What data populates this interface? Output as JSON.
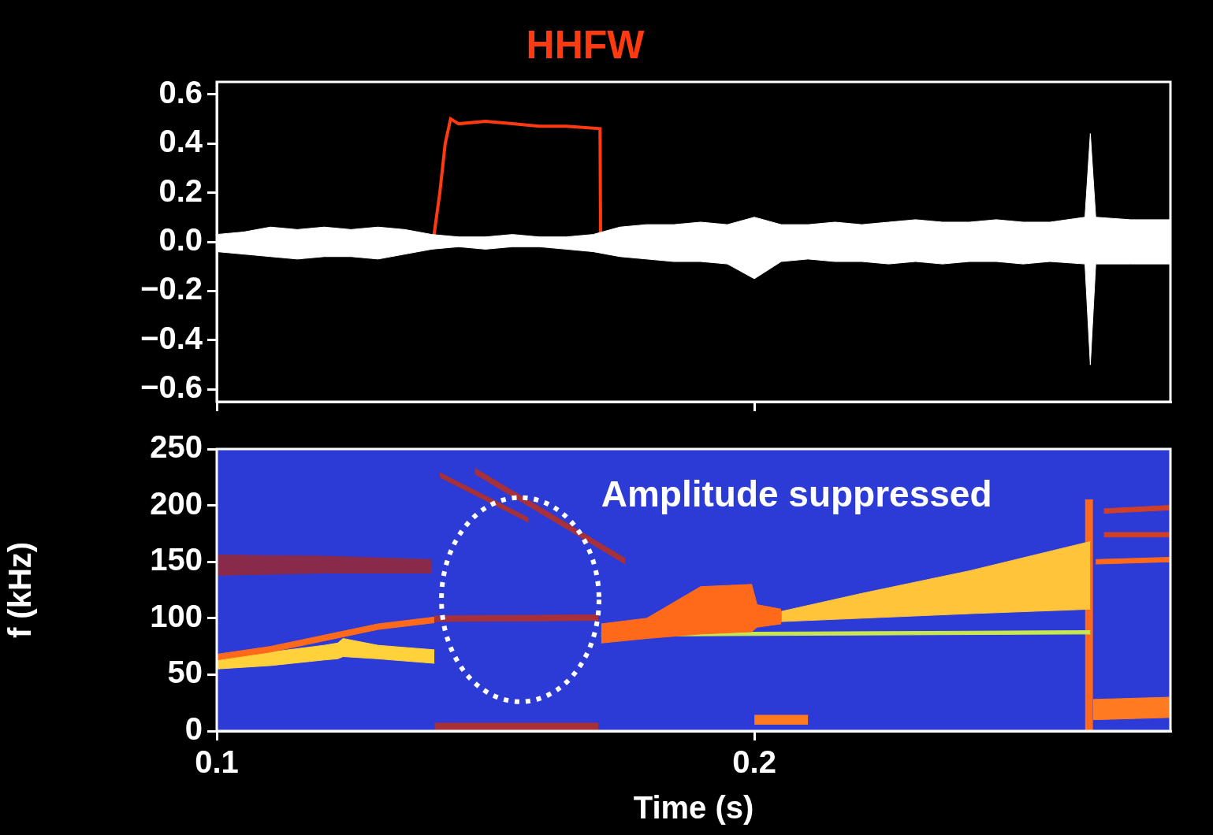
{
  "chart_data": [
    {
      "type": "line",
      "title": "HHFW",
      "xlim": [
        0.1,
        0.2774
      ],
      "xticks": [
        0.1,
        0.2
      ],
      "ylim": [
        -0.65,
        0.65
      ],
      "yticks": [
        {
          "value": 0.6,
          "label": "0.6"
        },
        {
          "value": 0.4,
          "label": "0.4"
        },
        {
          "value": 0.2,
          "label": "0.2"
        },
        {
          "value": 0,
          "label": "0.0"
        },
        {
          "value": -0.2,
          "label": "−0.2"
        },
        {
          "value": -0.4,
          "label": "−0.4"
        },
        {
          "value": -0.6,
          "label": "−0.6"
        }
      ],
      "grid": false,
      "tick_labels": "y",
      "series": [
        {
          "color": "#ffffff",
          "x": [
            0.1,
            0.105,
            0.11,
            0.115,
            0.12,
            0.125,
            0.13,
            0.135,
            0.14,
            0.145,
            0.15,
            0.155,
            0.16,
            0.165,
            0.17,
            0.175,
            0.18,
            0.185,
            0.19,
            0.195,
            0.2,
            0.205,
            0.21,
            0.215,
            0.22,
            0.225,
            0.23,
            0.235,
            0.24,
            0.245,
            0.25,
            0.255,
            0.2615,
            0.2625,
            0.2635,
            0.27,
            0.2774
          ],
          "upper": [
            0.03,
            0.04,
            0.06,
            0.05,
            0.06,
            0.05,
            0.06,
            0.05,
            0.03,
            0.02,
            0.02,
            0.03,
            0.02,
            0.02,
            0.03,
            0.06,
            0.07,
            0.07,
            0.08,
            0.07,
            0.1,
            0.07,
            0.07,
            0.08,
            0.07,
            0.08,
            0.09,
            0.08,
            0.08,
            0.09,
            0.08,
            0.08,
            0.1,
            0.44,
            0.1,
            0.09,
            0.09
          ],
          "lower": [
            -0.04,
            -0.05,
            -0.06,
            -0.07,
            -0.06,
            -0.06,
            -0.07,
            -0.05,
            -0.03,
            -0.02,
            -0.03,
            -0.02,
            -0.02,
            -0.03,
            -0.04,
            -0.06,
            -0.07,
            -0.08,
            -0.08,
            -0.09,
            -0.15,
            -0.08,
            -0.07,
            -0.08,
            -0.08,
            -0.09,
            -0.08,
            -0.09,
            -0.08,
            -0.08,
            -0.09,
            -0.08,
            -0.09,
            -0.5,
            -0.09,
            -0.09,
            -0.09
          ]
        },
        {
          "color": "#ff3a10",
          "x": [
            0.1,
            0.1403,
            0.1415,
            0.1425,
            0.1435,
            0.145,
            0.15,
            0.155,
            0.16,
            0.165,
            0.1713,
            0.1714,
            0.2774
          ],
          "values": [
            0.01,
            0.01,
            0.2,
            0.4,
            0.5,
            0.48,
            0.49,
            0.48,
            0.47,
            0.47,
            0.46,
            0.01,
            0.01
          ]
        }
      ]
    },
    {
      "type": "area",
      "x_label": "Time (s)",
      "y_label": "f (kHz)",
      "xlim": [
        0.1,
        0.2774
      ],
      "xticks": [
        0.1,
        0.2
      ],
      "ylim": [
        0,
        250
      ],
      "yticks": [
        0,
        50,
        100,
        150,
        200,
        250
      ],
      "grid": false,
      "annotations": [
        {
          "text": "Amplitude suppressed",
          "x": 0.1715,
          "y": 208
        },
        {
          "shape": "ellipse",
          "x": [
            0.1418,
            0.1711
          ],
          "y": [
            26,
            207
          ]
        }
      ],
      "series": [
        {
          "color": "#8a2a4a",
          "x": [
            0.1,
            0.12,
            0.14
          ],
          "lower": [
            138,
            140,
            140
          ],
          "upper": [
            156,
            155,
            152
          ]
        },
        {
          "color": "#ff6a1a",
          "x": [
            0.1,
            0.11,
            0.12,
            0.13,
            0.1405
          ],
          "lower": [
            63,
            70,
            80,
            90,
            96
          ],
          "upper": [
            68,
            75,
            85,
            95,
            101
          ]
        },
        {
          "color": "#ffd23c",
          "x": [
            0.1,
            0.11,
            0.12,
            0.1225,
            0.1235,
            0.13,
            0.1405
          ],
          "lower": [
            55,
            58,
            63,
            64,
            66,
            64,
            60
          ],
          "upper": [
            66,
            70,
            76,
            78,
            82,
            76,
            72
          ]
        },
        {
          "color": "#a83038",
          "x": [
            0.1405,
            0.171
          ],
          "lower": [
            97,
            98
          ],
          "upper": [
            102,
            103
          ]
        },
        {
          "color": "#a83038",
          "x": [
            0.1405,
            0.171
          ],
          "lower": [
            0,
            0
          ],
          "upper": [
            7,
            7
          ]
        },
        {
          "color": "#a83038",
          "x": [
            0.148,
            0.176
          ],
          "lower": [
            228,
            148
          ],
          "upper": [
            233,
            153
          ]
        },
        {
          "color": "#a83038",
          "x": [
            0.1415,
            0.158
          ],
          "lower": [
            225,
            185
          ],
          "upper": [
            229,
            189
          ]
        },
        {
          "color": "#ff6a1a",
          "x": [
            0.1715,
            0.18,
            0.19,
            0.1995,
            0.2005,
            0.205
          ],
          "lower": [
            78,
            82,
            86,
            88,
            92,
            95
          ],
          "upper": [
            95,
            100,
            128,
            130,
            112,
            108
          ]
        },
        {
          "color": "#ffc43a",
          "x": [
            0.205,
            0.22,
            0.24,
            0.2625
          ],
          "lower": [
            97,
            100,
            104,
            108
          ],
          "upper": [
            106,
            122,
            142,
            168
          ]
        },
        {
          "color": "#c8e650",
          "x": [
            0.1715,
            0.2625
          ],
          "lower": [
            84,
            86
          ],
          "upper": [
            87,
            89
          ]
        },
        {
          "color": "#ff6a1a",
          "x": [
            0.2615,
            0.263
          ],
          "lower": [
            0,
            0
          ],
          "upper": [
            205,
            205
          ]
        },
        {
          "color": "#ff7a20",
          "x": [
            0.263,
            0.2774
          ],
          "lower": [
            10,
            12
          ],
          "upper": [
            28,
            30
          ]
        },
        {
          "color": "#d04028",
          "x": [
            0.265,
            0.2774
          ],
          "lower": [
            193,
            196
          ],
          "upper": [
            197,
            200
          ]
        },
        {
          "color": "#d04028",
          "x": [
            0.265,
            0.2774
          ],
          "lower": [
            172,
            172
          ],
          "upper": [
            176,
            176
          ]
        },
        {
          "color": "#ff6a1a",
          "x": [
            0.2635,
            0.2774
          ],
          "lower": [
            148,
            150
          ],
          "upper": [
            152,
            154
          ]
        },
        {
          "color": "#ff7a20",
          "x": [
            0.2,
            0.21
          ],
          "lower": [
            6,
            6
          ],
          "upper": [
            14,
            14
          ]
        }
      ]
    }
  ]
}
